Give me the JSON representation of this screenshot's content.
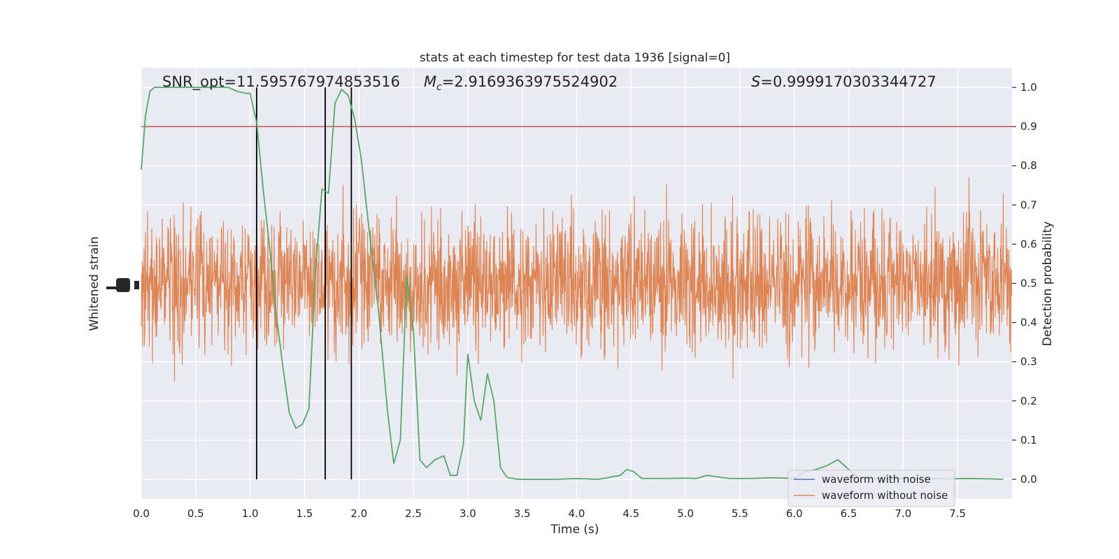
{
  "chart_data": {
    "type": "line",
    "title": "stats at each timestep for test data 1936 [signal=0]",
    "xlabel": "Time (s)",
    "ylabel_left": "Whitened strain",
    "ylabel_right": "Detection probability",
    "xlim": [
      0.0,
      8.0
    ],
    "ylim_right": [
      -0.05,
      1.05
    ],
    "xticks": [
      "0.0",
      "0.5",
      "1.0",
      "1.5",
      "2.0",
      "2.5",
      "3.0",
      "3.5",
      "4.0",
      "4.5",
      "5.0",
      "5.5",
      "6.0",
      "6.5",
      "7.0",
      "7.5"
    ],
    "xtick_values": [
      0.0,
      0.5,
      1.0,
      1.5,
      2.0,
      2.5,
      3.0,
      3.5,
      4.0,
      4.5,
      5.0,
      5.5,
      6.0,
      6.5,
      7.0,
      7.5
    ],
    "yticks_right": [
      "0.0",
      "0.1",
      "0.2",
      "0.3",
      "0.4",
      "0.5",
      "0.6",
      "0.7",
      "0.8",
      "0.9",
      "1.0"
    ],
    "ytick_values_right": [
      0.0,
      0.1,
      0.2,
      0.3,
      0.4,
      0.5,
      0.6,
      0.7,
      0.8,
      0.9,
      1.0
    ],
    "annotations": {
      "snr": "SNR_opt=11.595767974853516",
      "mc_symbol": "M",
      "mc_sub": "c",
      "mc_value": "=2.9169363975524902",
      "s_symbol": "S",
      "s_value": "=0.9999170303344727"
    },
    "threshold": 0.9,
    "vertical_lines_x": [
      1.06,
      1.69,
      1.93
    ],
    "legend": {
      "placement": "lower-right",
      "entries": [
        "waveform with noise",
        "waveform without noise"
      ]
    },
    "series": [
      {
        "role": "detection probability",
        "x": [
          0.0,
          0.04,
          0.08,
          0.12,
          0.2,
          0.4,
          0.6,
          0.8,
          0.88,
          0.96,
          1.0,
          1.06,
          1.12,
          1.18,
          1.24,
          1.3,
          1.36,
          1.42,
          1.48,
          1.54,
          1.6,
          1.66,
          1.72,
          1.78,
          1.84,
          1.9,
          1.96,
          2.02,
          2.1,
          2.18,
          2.26,
          2.32,
          2.38,
          2.44,
          2.5,
          2.56,
          2.62,
          2.7,
          2.78,
          2.84,
          2.9,
          2.96,
          3.0,
          3.06,
          3.12,
          3.18,
          3.24,
          3.3,
          3.36,
          3.46,
          3.6,
          3.8,
          4.0,
          4.2,
          4.4,
          4.46,
          4.52,
          4.6,
          4.8,
          5.0,
          5.1,
          5.2,
          5.4,
          5.6,
          5.8,
          6.0,
          6.1,
          6.2,
          6.3,
          6.4,
          6.5,
          6.6,
          6.8,
          7.0,
          7.2,
          7.4,
          7.6,
          7.8,
          7.92
        ],
        "values": [
          0.79,
          0.93,
          0.99,
          1.0,
          1.0,
          1.0,
          1.0,
          1.0,
          0.99,
          0.985,
          0.985,
          0.91,
          0.74,
          0.59,
          0.42,
          0.29,
          0.17,
          0.13,
          0.14,
          0.18,
          0.53,
          0.74,
          0.73,
          0.96,
          0.995,
          0.98,
          0.92,
          0.82,
          0.62,
          0.43,
          0.18,
          0.04,
          0.1,
          0.52,
          0.38,
          0.05,
          0.03,
          0.05,
          0.06,
          0.01,
          0.01,
          0.09,
          0.32,
          0.2,
          0.15,
          0.27,
          0.2,
          0.03,
          0.005,
          0.0,
          0.0,
          0.0,
          0.002,
          0.0,
          0.01,
          0.025,
          0.02,
          0.002,
          0.002,
          0.003,
          0.002,
          0.01,
          0.002,
          0.002,
          0.004,
          0.002,
          0.02,
          0.025,
          0.035,
          0.05,
          0.025,
          0.003,
          0.002,
          0.002,
          0.002,
          0.001,
          0.002,
          0.001,
          0.0
        ]
      }
    ]
  }
}
